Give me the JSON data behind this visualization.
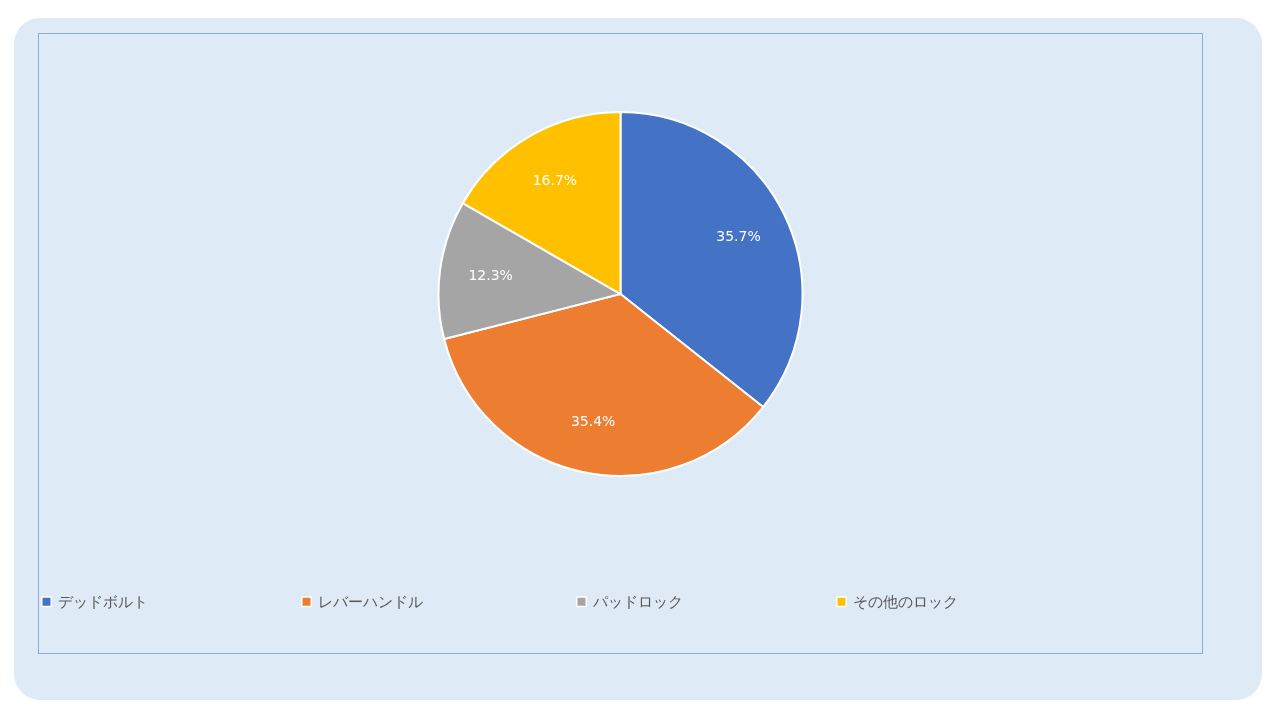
{
  "chart_data": {
    "type": "pie",
    "categories": [
      "デッドボルト",
      "レバーハンドル",
      "パッドロック",
      "その他のロック"
    ],
    "values": [
      35.7,
      35.4,
      12.3,
      16.7
    ],
    "colors": [
      "#4472c4",
      "#ed7d31",
      "#a5a5a5",
      "#ffc000"
    ],
    "value_labels": [
      "35.7%",
      "35.4%",
      "12.3%",
      "16.7%"
    ],
    "legend": "bottom"
  }
}
